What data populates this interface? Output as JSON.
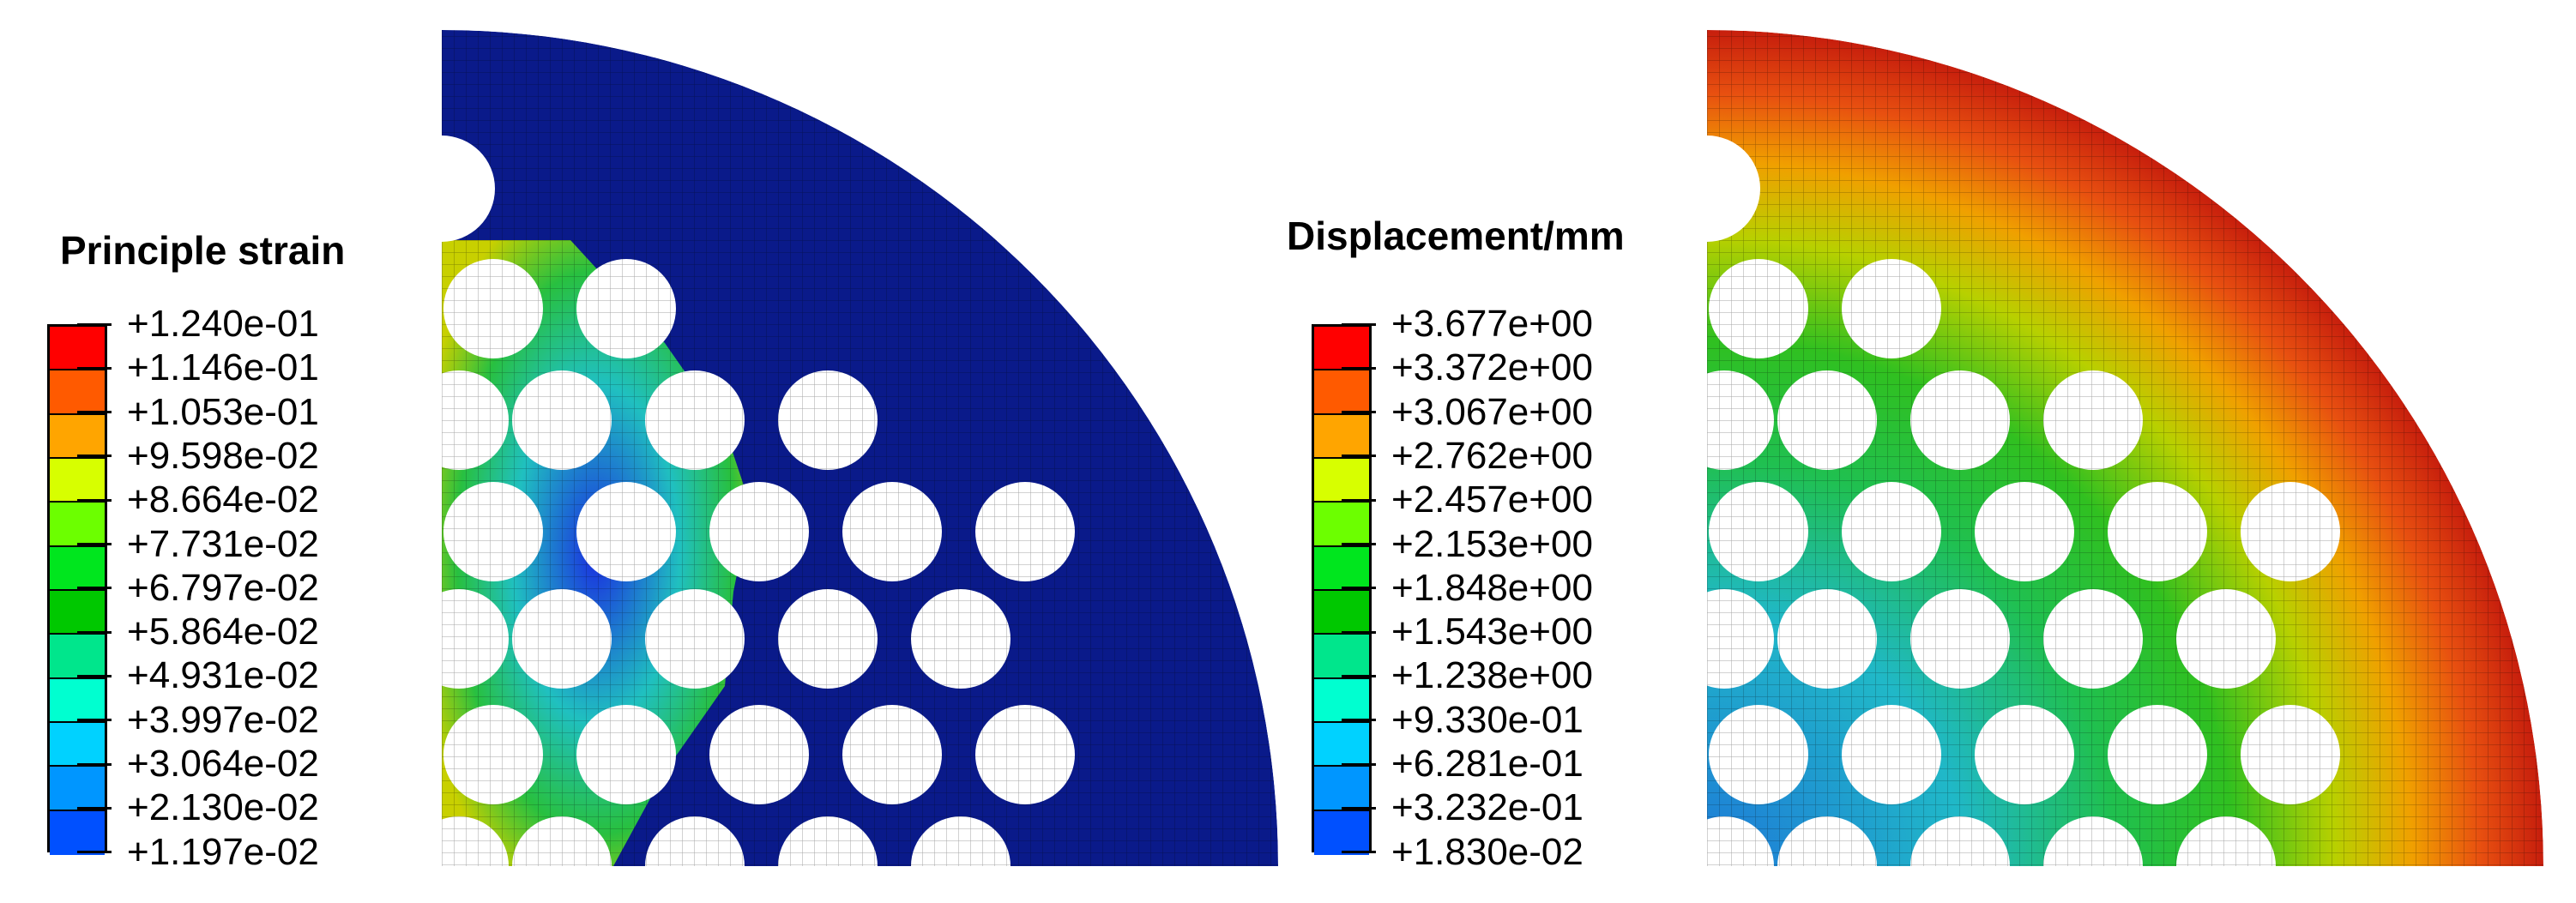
{
  "left": {
    "legend_title": "Principle strain",
    "legend_values": [
      "+1.240e-01",
      "+1.146e-01",
      "+1.053e-01",
      "+9.598e-02",
      "+8.664e-02",
      "+7.731e-02",
      "+6.797e-02",
      "+5.864e-02",
      "+4.931e-02",
      "+3.997e-02",
      "+3.064e-02",
      "+2.130e-02",
      "+1.197e-02"
    ],
    "field_color": "#0a1a8a",
    "ligament_color": "#22b04a"
  },
  "right": {
    "legend_title": "Displacement/mm",
    "legend_values": [
      "+3.677e+00",
      "+3.372e+00",
      "+3.067e+00",
      "+2.762e+00",
      "+2.457e+00",
      "+2.153e+00",
      "+1.848e+00",
      "+1.543e+00",
      "+1.238e+00",
      "+9.330e-01",
      "+6.281e-01",
      "+3.232e-01",
      "+1.830e-02"
    ],
    "edge_color": "#c0140c",
    "center_color": "#2a9fd0"
  },
  "colormap": [
    "#ff0000",
    "#ff5a00",
    "#ffa500",
    "#d7ff00",
    "#6cff00",
    "#00e61e",
    "#00c800",
    "#00e68c",
    "#00ffd0",
    "#00d2ff",
    "#0096ff",
    "#0050ff",
    "#0000ff"
  ]
}
